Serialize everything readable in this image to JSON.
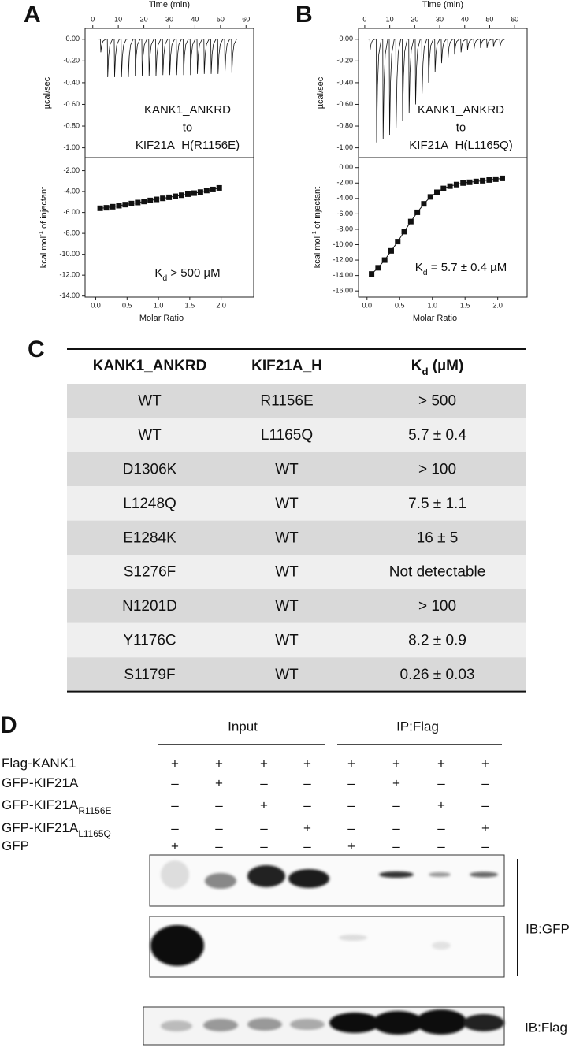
{
  "panel_a": {
    "letter": "A",
    "raw": {
      "x_label": "Time (min)",
      "y_label": "µcal/sec",
      "xlim": [
        -3,
        63
      ],
      "ylim": [
        -1.09,
        0.1
      ],
      "xticks": [
        0,
        10,
        20,
        30,
        40,
        50,
        60
      ],
      "yticks": [
        {
          "value": 0,
          "label": "0.00"
        },
        {
          "value": -0.2,
          "label": "-0.20"
        },
        {
          "value": -0.4,
          "label": "-0.40"
        },
        {
          "value": -0.6,
          "label": "-0.60"
        },
        {
          "value": -0.8,
          "label": "-0.80"
        },
        {
          "value": -1,
          "label": "-1.00"
        }
      ],
      "time": [
        3,
        5.7,
        8.4,
        11.1,
        13.8,
        16.5,
        19.2,
        21.9,
        24.6,
        27.3,
        30,
        32.7,
        35.4,
        38.1,
        40.8,
        43.5,
        46.2,
        48.9,
        51.6,
        54.3
      ],
      "peak": [
        -0.12,
        -0.35,
        -0.35,
        -0.35,
        -0.35,
        -0.34,
        -0.34,
        -0.34,
        -0.34,
        -0.33,
        -0.33,
        -0.33,
        -0.33,
        -0.33,
        -0.32,
        -0.32,
        -0.32,
        -0.32,
        -0.31,
        -0.31
      ],
      "annotation": [
        "KANK1_ANKRD",
        "to",
        "KIF21A_H(R1156E)"
      ]
    },
    "isotherm": {
      "x_label": "Molar Ratio",
      "y_label": {
        "main": "kcal mol",
        "sup": "-1",
        "rest": " of injectant"
      },
      "xlim": [
        -0.17,
        2.52
      ],
      "ylim": [
        -14.1,
        -0.75
      ],
      "xticks": [
        {
          "value": 0,
          "label": "0.0"
        },
        {
          "value": 0.5,
          "label": "0.5"
        },
        {
          "value": 1,
          "label": "1.0"
        },
        {
          "value": 1.5,
          "label": "1.5"
        },
        {
          "value": 2,
          "label": "2.0"
        }
      ],
      "yticks": [
        {
          "value": -2,
          "label": "-2.00"
        },
        {
          "value": -4,
          "label": "-4.00"
        },
        {
          "value": -6,
          "label": "-6.00"
        },
        {
          "value": -8,
          "label": "-8.00"
        },
        {
          "value": -10,
          "label": "-10.00"
        },
        {
          "value": -12,
          "label": "-12.00"
        },
        {
          "value": -14,
          "label": "-14.00"
        }
      ],
      "x": [
        0.07,
        0.17,
        0.27,
        0.37,
        0.47,
        0.57,
        0.67,
        0.77,
        0.87,
        0.97,
        1.07,
        1.17,
        1.27,
        1.37,
        1.47,
        1.57,
        1.67,
        1.77,
        1.87,
        1.97
      ],
      "y": [
        -5.6,
        -5.55,
        -5.45,
        -5.35,
        -5.25,
        -5.15,
        -5.05,
        -4.95,
        -4.85,
        -4.75,
        -4.65,
        -4.55,
        -4.45,
        -4.35,
        -4.25,
        -4.15,
        -4.05,
        -3.9,
        -3.8,
        -3.65
      ],
      "kd": {
        "main": "K",
        "sub": "d",
        "rest": " > 500 µM"
      }
    }
  },
  "panel_b": {
    "letter": "B",
    "raw": {
      "x_label": "Time (min)",
      "y_label": "µcal/sec",
      "xlim": [
        -2.5,
        65
      ],
      "ylim": [
        -1.09,
        0.1
      ],
      "xticks": [
        0,
        10,
        20,
        30,
        40,
        50,
        60
      ],
      "yticks": [
        {
          "value": 0,
          "label": "0.00"
        },
        {
          "value": -0.2,
          "label": "-0.20"
        },
        {
          "value": -0.4,
          "label": "-0.40"
        },
        {
          "value": -0.6,
          "label": "-0.60"
        },
        {
          "value": -0.8,
          "label": "-0.80"
        },
        {
          "value": -1,
          "label": "-1.00"
        }
      ],
      "time": [
        2,
        4.6,
        7.2,
        9.8,
        12.4,
        15,
        17.6,
        20.2,
        22.8,
        25.4,
        28,
        30.6,
        33.2,
        35.8,
        38.4,
        41,
        43.6,
        46.2,
        48.8,
        51.4,
        54
      ],
      "peak": [
        -0.1,
        -0.95,
        -0.92,
        -0.88,
        -0.82,
        -0.75,
        -0.68,
        -0.6,
        -0.5,
        -0.4,
        -0.3,
        -0.22,
        -0.17,
        -0.14,
        -0.12,
        -0.1,
        -0.09,
        -0.08,
        -0.08,
        -0.07,
        -0.07
      ],
      "annotation": [
        "KANK1_ANKRD",
        "to",
        "KIF21A_H(L1165Q)"
      ]
    },
    "isotherm": {
      "x_label": "Molar Ratio",
      "y_label": {
        "main": "kcal mol",
        "sup": "-1",
        "rest": " of injectant"
      },
      "xlim": [
        -0.13,
        2.45
      ],
      "ylim": [
        -16.8,
        1.3
      ],
      "xticks": [
        {
          "value": 0,
          "label": "0.0"
        },
        {
          "value": 0.5,
          "label": "0.5"
        },
        {
          "value": 1,
          "label": "1.0"
        },
        {
          "value": 1.5,
          "label": "1.5"
        },
        {
          "value": 2,
          "label": "2.0"
        }
      ],
      "yticks": [
        {
          "value": 0,
          "label": "0.00"
        },
        {
          "value": -2,
          "label": "-2.00"
        },
        {
          "value": -4,
          "label": "-4.00"
        },
        {
          "value": -6,
          "label": "-6.00"
        },
        {
          "value": -8,
          "label": "-8.00"
        },
        {
          "value": -10,
          "label": "-10.00"
        },
        {
          "value": -12,
          "label": "-12.00"
        },
        {
          "value": -14,
          "label": "-14.00"
        },
        {
          "value": -16,
          "label": "-16.00"
        }
      ],
      "x": [
        0.07,
        0.17,
        0.27,
        0.37,
        0.47,
        0.57,
        0.67,
        0.77,
        0.87,
        0.97,
        1.07,
        1.17,
        1.27,
        1.37,
        1.47,
        1.57,
        1.67,
        1.77,
        1.87,
        1.97,
        2.07
      ],
      "y": [
        -13.8,
        -13.0,
        -12.0,
        -10.8,
        -9.6,
        -8.3,
        -7.0,
        -5.8,
        -4.7,
        -3.8,
        -3.2,
        -2.7,
        -2.4,
        -2.2,
        -2.0,
        -1.9,
        -1.8,
        -1.7,
        -1.6,
        -1.5,
        -1.4
      ],
      "kd": {
        "main": "K",
        "sub": "d",
        "rest": " = 5.7 ± 0.4 µM"
      }
    }
  },
  "panel_c": {
    "letter": "C",
    "header": [
      "KANK1_ANKRD",
      "KIF21A_H",
      {
        "main": "K",
        "sub": "d",
        "rest": " (µM)"
      }
    ],
    "rows": [
      [
        "WT",
        "R1156E",
        "> 500"
      ],
      [
        "WT",
        "L1165Q",
        "5.7 ± 0.4"
      ],
      [
        "D1306K",
        "WT",
        "> 100"
      ],
      [
        "L1248Q",
        "WT",
        "7.5 ± 1.1"
      ],
      [
        "E1284K",
        "WT",
        "16 ± 5"
      ],
      [
        "S1276F",
        "WT",
        "Not detectable"
      ],
      [
        "N1201D",
        "WT",
        "> 100"
      ],
      [
        "Y1176C",
        "WT",
        "8.2 ± 0.9"
      ],
      [
        "S1179F",
        "WT",
        "0.26 ± 0.03"
      ]
    ]
  },
  "panel_d": {
    "letter": "D",
    "groups": [
      "Input",
      "IP:Flag"
    ],
    "row_labels": [
      {
        "main": "Flag-KANK1"
      },
      {
        "main": "GFP-KIF21A"
      },
      {
        "main": "GFP-KIF21A",
        "sub": "R1156E"
      },
      {
        "main": "GFP-KIF21A",
        "sub": "L1165Q"
      },
      {
        "main": "GFP"
      }
    ],
    "signs": [
      [
        "+",
        "+",
        "+",
        "+",
        "+",
        "+",
        "+",
        "+"
      ],
      [
        "–",
        "+",
        "–",
        "–",
        "–",
        "+",
        "–",
        "–"
      ],
      [
        "–",
        "–",
        "+",
        "–",
        "–",
        "–",
        "+",
        "–"
      ],
      [
        "–",
        "–",
        "–",
        "+",
        "–",
        "–",
        "–",
        "+"
      ],
      [
        "+",
        "–",
        "–",
        "–",
        "+",
        "–",
        "–",
        "–"
      ]
    ],
    "blot_labels": [
      "IB:GFP",
      "IB:Flag"
    ]
  }
}
